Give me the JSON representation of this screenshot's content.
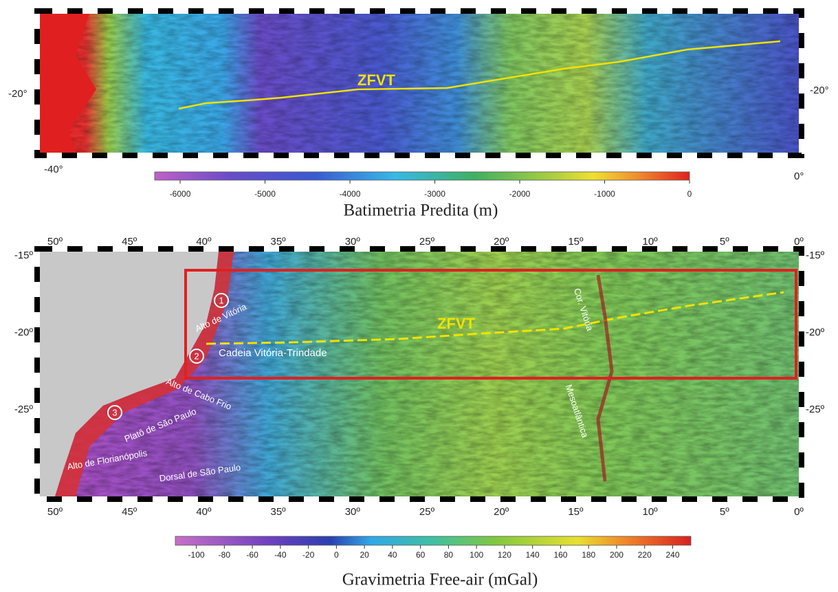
{
  "top_map": {
    "annotation": "ZFVT",
    "lat_left": "-20°",
    "lat_right": "-20°",
    "lon_left": "-40°",
    "lon_right": "0°",
    "colorbar": {
      "lim": [
        -6300,
        0
      ],
      "ticks": [
        -6000,
        -5000,
        -4000,
        -3000,
        -2000,
        -1000,
        0
      ],
      "title": "Batimetria Predita (m)"
    }
  },
  "bottom_map": {
    "lon_labels": [
      "50º",
      "45º",
      "40º",
      "35º",
      "30º",
      "25º",
      "20º",
      "15º",
      "10º",
      "5º",
      "0º"
    ],
    "lat_labels": [
      "-15º",
      "-20º",
      "-25º"
    ],
    "annotations": {
      "site_1": "1",
      "site_2": "2",
      "site_3": "3",
      "alto_vitoria": "Alto de Vitória",
      "cadeia": "Cadeia Vitória-Trindade",
      "cabo_frio": "Alto de Cabo Frio",
      "plato": "Platô de São Paulo",
      "florianopolis": "Alto de Florianópolis",
      "dorsal": "Dorsal de São Paulo",
      "zfvt": "ZFVT",
      "cor_vitoria": "Cor. Vitória",
      "mesoatlantica": "Mesoatlântica"
    },
    "colorbar": {
      "lim": [
        -115,
        253
      ],
      "ticks": [
        -100,
        -80,
        -60,
        -40,
        -20,
        0,
        20,
        40,
        60,
        80,
        100,
        120,
        140,
        160,
        180,
        200,
        220,
        240
      ],
      "title": "Gravimetria Free-air (mGal)"
    }
  }
}
